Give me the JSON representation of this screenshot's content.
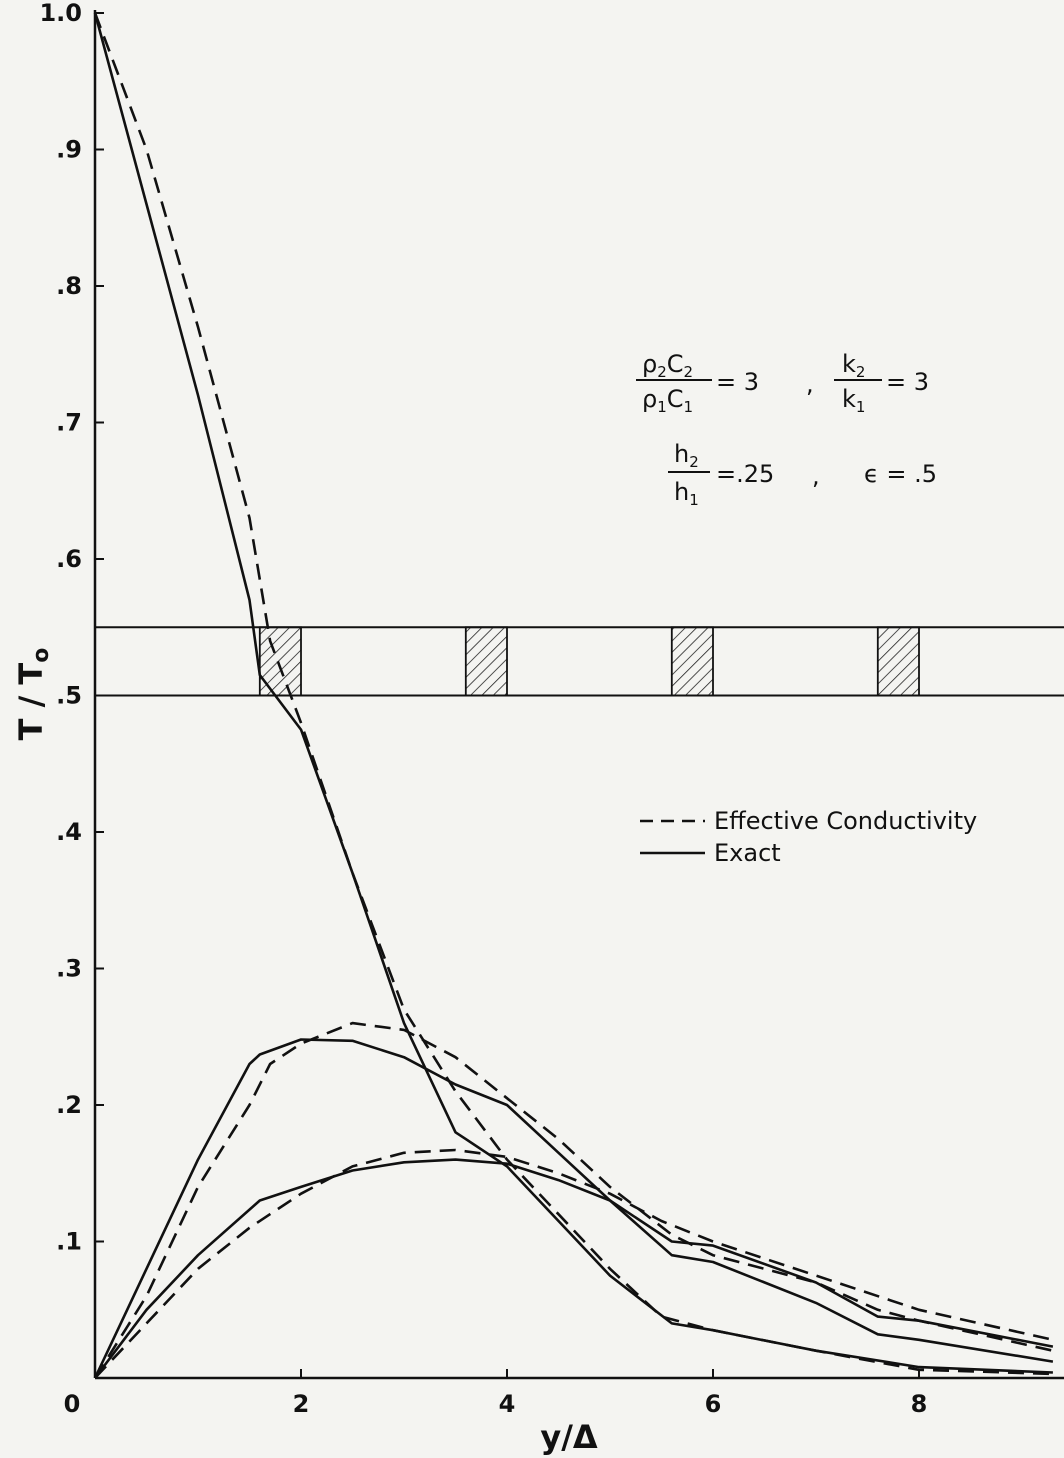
{
  "chart_data": {
    "type": "line",
    "xlabel": "y/Δ",
    "ylabel": "T / T",
    "ylabel_subscript": "o",
    "xlim": [
      0,
      9.3
    ],
    "ylim": [
      0,
      1.0
    ],
    "x_ticks": [
      {
        "value": 0,
        "label": "0"
      },
      {
        "value": 2,
        "label": "2"
      },
      {
        "value": 4,
        "label": "4"
      },
      {
        "value": 6,
        "label": "6"
      },
      {
        "value": 8,
        "label": "8"
      }
    ],
    "y_ticks": [
      {
        "value": 1.0,
        "label": "1.0"
      },
      {
        "value": 0.9,
        "label": ".9"
      },
      {
        "value": 0.8,
        "label": ".8"
      },
      {
        "value": 0.7,
        "label": ".7"
      },
      {
        "value": 0.6,
        "label": ".6"
      },
      {
        "value": 0.5,
        "label": ".5"
      },
      {
        "value": 0.4,
        "label": ".4"
      },
      {
        "value": 0.3,
        "label": ".3"
      },
      {
        "value": 0.2,
        "label": ".2"
      },
      {
        "value": 0.1,
        "label": ".1"
      }
    ],
    "grid": false,
    "legend": {
      "position": "right-middle",
      "entries": [
        {
          "label": "Effective Conductivity",
          "style": "dashed"
        },
        {
          "label": "Exact",
          "style": "solid"
        }
      ]
    },
    "parameters": {
      "rho_c": {
        "num": "ρ",
        "num_sub": "2",
        "num_c": "C",
        "num_c_sub": "2",
        "den": "ρ",
        "den_sub": "1",
        "den_c": "C",
        "den_c_sub": "1",
        "value": "= 3"
      },
      "k": {
        "num": "k",
        "num_sub": "2",
        "den": "k",
        "den_sub": "1",
        "value": "= 3"
      },
      "h": {
        "num": "h",
        "num_sub": "2",
        "den": "h",
        "den_sub": "1",
        "value": "=.25"
      },
      "eps": {
        "text": "ϵ = .5"
      },
      "separator": ","
    },
    "layer_band": {
      "y_low": 0.5,
      "y_high": 0.55,
      "hatched_blocks": [
        [
          1.6,
          2.0
        ],
        [
          3.6,
          4.0
        ],
        [
          5.6,
          6.0
        ],
        [
          7.6,
          8.0
        ]
      ]
    },
    "series": [
      {
        "style": "solid",
        "x": [
          0,
          0.5,
          1.0,
          1.5,
          1.6,
          2.0,
          2.5,
          3.0,
          3.5,
          3.6,
          4.0,
          4.5,
          5.0,
          5.6,
          6.0,
          7.0,
          8.0,
          9.3
        ],
        "y": [
          1.0,
          0.86,
          0.72,
          0.57,
          0.515,
          0.475,
          0.37,
          0.26,
          0.18,
          0.175,
          0.155,
          0.115,
          0.075,
          0.04,
          0.035,
          0.02,
          0.008,
          0.004
        ]
      },
      {
        "style": "dashed",
        "x": [
          0,
          0.5,
          1.0,
          1.5,
          1.7,
          2.0,
          2.5,
          3.0,
          3.5,
          4.0,
          4.5,
          5.0,
          5.5,
          6.0,
          7.0,
          8.0,
          9.3
        ],
        "y": [
          1.0,
          0.9,
          0.77,
          0.63,
          0.54,
          0.48,
          0.37,
          0.27,
          0.21,
          0.16,
          0.12,
          0.08,
          0.045,
          0.035,
          0.02,
          0.006,
          0.003
        ]
      },
      {
        "style": "solid",
        "x": [
          0,
          0.5,
          1.0,
          1.5,
          1.6,
          2.0,
          2.5,
          3.0,
          3.5,
          4.0,
          4.5,
          5.0,
          5.6,
          6.0,
          7.0,
          7.6,
          8.0,
          9.3
        ],
        "y": [
          0,
          0.08,
          0.16,
          0.23,
          0.237,
          0.248,
          0.247,
          0.235,
          0.215,
          0.2,
          0.165,
          0.13,
          0.09,
          0.085,
          0.055,
          0.032,
          0.028,
          0.012
        ]
      },
      {
        "style": "dashed",
        "x": [
          0,
          0.5,
          1.0,
          1.5,
          1.7,
          2.0,
          2.5,
          3.0,
          3.5,
          4.0,
          4.5,
          5.0,
          5.6,
          6.0,
          7.0,
          7.6,
          8.0,
          9.3
        ],
        "y": [
          0,
          0.06,
          0.14,
          0.2,
          0.23,
          0.245,
          0.26,
          0.255,
          0.235,
          0.205,
          0.175,
          0.14,
          0.105,
          0.09,
          0.07,
          0.05,
          0.042,
          0.02
        ]
      },
      {
        "style": "solid",
        "x": [
          0,
          0.5,
          1.0,
          1.6,
          2.0,
          2.5,
          3.0,
          3.5,
          4.0,
          4.5,
          5.0,
          5.6,
          6.0,
          7.0,
          7.6,
          8.0,
          9.3
        ],
        "y": [
          0,
          0.05,
          0.09,
          0.13,
          0.14,
          0.152,
          0.158,
          0.16,
          0.157,
          0.145,
          0.13,
          0.1,
          0.097,
          0.07,
          0.045,
          0.042,
          0.023
        ]
      },
      {
        "style": "dashed",
        "x": [
          0,
          0.5,
          1.0,
          1.5,
          2.0,
          2.5,
          3.0,
          3.5,
          4.0,
          4.5,
          5.0,
          5.5,
          6.0,
          7.0,
          8.0,
          9.3
        ],
        "y": [
          0,
          0.04,
          0.08,
          0.11,
          0.135,
          0.155,
          0.165,
          0.167,
          0.162,
          0.15,
          0.135,
          0.115,
          0.1,
          0.075,
          0.05,
          0.028
        ]
      }
    ]
  }
}
